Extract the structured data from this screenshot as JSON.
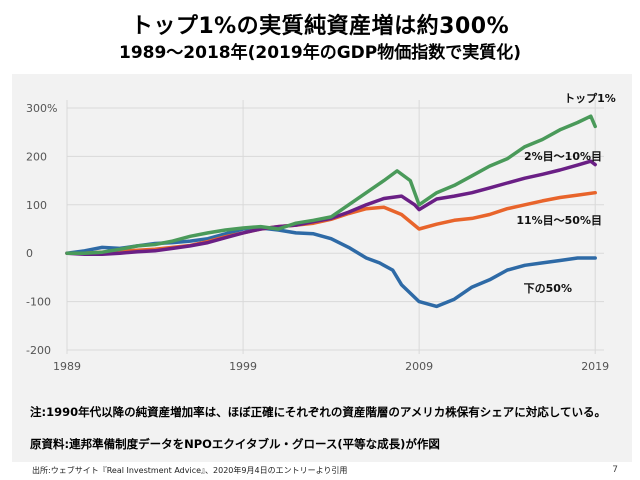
{
  "slide": {
    "title": "トップ1%の実質純資産増は約300%",
    "subtitle": "1989〜2018年(2019年のGDP物価指数で実質化)",
    "note": "注:1990年代以降の純資産増加率は、ほぼ正確にそれぞれの資産階層のアメリカ株保有シェアに対応している。",
    "source": "原資料:連邦準備制度データをNPOエクイタブル・グロース(平等な成長)が作図",
    "footer": "出所:ウェブサイト『Real Investment Advice』、2020年9月4日のエントリーより引用",
    "page_number": "7"
  },
  "chart_data": {
    "type": "line",
    "title": "",
    "xlabel": "",
    "ylabel": "",
    "xlim": [
      1989,
      2019.5
    ],
    "ylim": [
      -200,
      300
    ],
    "x_ticks": [
      1989,
      1999,
      2009,
      2019
    ],
    "x_tick_labels": [
      "1989",
      "1999",
      "2009",
      "2019"
    ],
    "y_ticks": [
      300,
      200,
      100,
      0,
      -100,
      -200
    ],
    "y_tick_labels": [
      "300%",
      "200",
      "100",
      "0",
      "-100",
      "-200"
    ],
    "gridlines": true,
    "series": [
      {
        "name": "トップ1%",
        "color": "#4a9a5a",
        "x": [
          1989,
          1990,
          1991,
          1992,
          1993,
          1994,
          1995,
          1996,
          1997,
          1998,
          1999,
          2000,
          2001,
          2002,
          2003,
          2004,
          2005,
          2006,
          2007,
          2007.75,
          2008.5,
          2009,
          2010,
          2011,
          2012,
          2013,
          2014,
          2015,
          2016,
          2017,
          2018,
          2018.75,
          2019
        ],
        "values": [
          0,
          0,
          2,
          8,
          15,
          18,
          25,
          35,
          42,
          48,
          52,
          55,
          50,
          62,
          68,
          75,
          100,
          125,
          150,
          170,
          150,
          100,
          125,
          140,
          160,
          180,
          195,
          220,
          235,
          255,
          270,
          283,
          262
        ]
      },
      {
        "name": "2%目〜10%目",
        "color": "#6a1f85",
        "x": [
          1989,
          1990,
          1991,
          1992,
          1993,
          1994,
          1995,
          1996,
          1997,
          1998,
          1999,
          2000,
          2001,
          2002,
          2003,
          2004,
          2005,
          2006,
          2007,
          2008,
          2008.75,
          2009,
          2010,
          2011,
          2012,
          2013,
          2014,
          2015,
          2016,
          2017,
          2018,
          2018.75,
          2019
        ],
        "values": [
          0,
          -2,
          -2,
          0,
          3,
          5,
          10,
          15,
          22,
          32,
          42,
          50,
          55,
          58,
          65,
          72,
          85,
          100,
          113,
          118,
          100,
          90,
          112,
          118,
          125,
          135,
          145,
          155,
          163,
          172,
          182,
          190,
          183
        ]
      },
      {
        "name": "11%目〜50%目",
        "color": "#e8642b",
        "x": [
          1989,
          1990,
          1991,
          1992,
          1993,
          1994,
          1995,
          1996,
          1997,
          1998,
          1999,
          2000,
          2001,
          2002,
          2003,
          2004,
          2005,
          2006,
          2007,
          2008,
          2009,
          2010,
          2011,
          2012,
          2013,
          2014,
          2015,
          2016,
          2017,
          2018,
          2019
        ],
        "values": [
          0,
          0,
          2,
          4,
          6,
          8,
          12,
          16,
          24,
          34,
          42,
          50,
          55,
          58,
          62,
          70,
          82,
          92,
          95,
          80,
          50,
          60,
          68,
          72,
          80,
          92,
          100,
          108,
          115,
          120,
          125
        ]
      },
      {
        "name": "下の50%",
        "color": "#2e6aa6",
        "x": [
          1989,
          1990,
          1991,
          1992,
          1993,
          1994,
          1995,
          1996,
          1997,
          1998,
          1999,
          2000,
          2001,
          2002,
          2003,
          2004,
          2005,
          2006,
          2006.75,
          2007.5,
          2008,
          2009,
          2010,
          2011,
          2012,
          2013,
          2014,
          2015,
          2016,
          2017,
          2018,
          2019
        ],
        "values": [
          0,
          5,
          12,
          10,
          15,
          20,
          22,
          25,
          30,
          40,
          50,
          52,
          48,
          42,
          40,
          30,
          12,
          -10,
          -20,
          -35,
          -65,
          -100,
          -110,
          -95,
          -70,
          -55,
          -35,
          -25,
          -20,
          -15,
          -10,
          -10
        ]
      }
    ],
    "series_labels": [
      {
        "text": "トップ1%",
        "series": "トップ1%"
      },
      {
        "text": "2%目〜10%目",
        "series": "2%目〜10%目"
      },
      {
        "text": "11%目〜50%目",
        "series": "11%目〜50%目"
      },
      {
        "text": "下の50%",
        "series": "下の50%"
      }
    ]
  }
}
